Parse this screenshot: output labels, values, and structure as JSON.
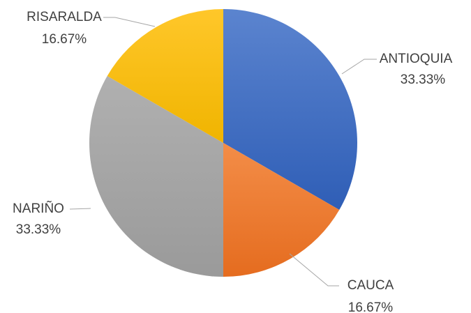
{
  "chart_data": {
    "type": "pie",
    "title": "",
    "slices": [
      {
        "label": "ANTIOQUIA",
        "value": 33.33,
        "display": "33.33%",
        "color": "#4472C4"
      },
      {
        "label": "CAUCA",
        "value": 16.67,
        "display": "16.67%",
        "color": "#ED7D31"
      },
      {
        "label": "NARIÑO",
        "value": 33.33,
        "display": "33.33%",
        "color": "#A5A5A5"
      },
      {
        "label": "RISARALDA",
        "value": 16.67,
        "display": "16.67%",
        "color": "#FFC000"
      }
    ],
    "start_angle_deg": 0,
    "direction": "clockwise",
    "legend": "none",
    "data_labels": "outside-with-leader-lines"
  }
}
